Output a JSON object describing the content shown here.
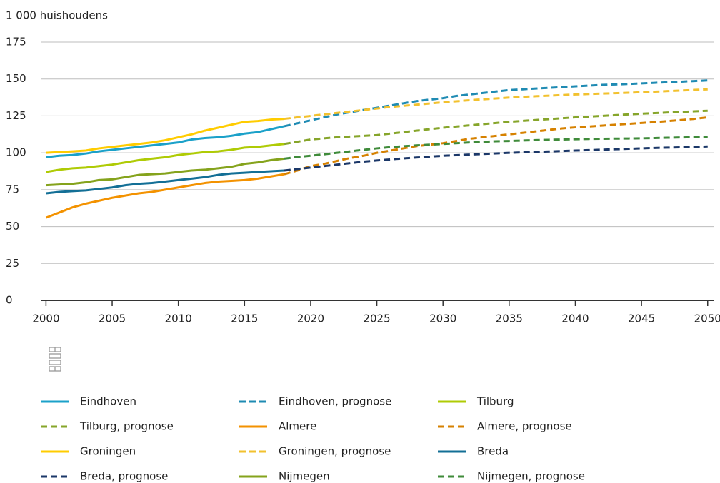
{
  "chart_data": {
    "type": "line",
    "y_label": "1 000 huishoudens",
    "x": [
      2000,
      2001,
      2002,
      2003,
      2004,
      2005,
      2006,
      2007,
      2008,
      2009,
      2010,
      2011,
      2012,
      2013,
      2014,
      2015,
      2016,
      2017,
      2018,
      2019,
      2020,
      2021,
      2022,
      2023,
      2024,
      2025,
      2026,
      2027,
      2028,
      2029,
      2030,
      2031,
      2032,
      2033,
      2034,
      2035,
      2036,
      2037,
      2038,
      2039,
      2040,
      2041,
      2042,
      2043,
      2044,
      2045,
      2046,
      2047,
      2048,
      2049,
      2050
    ],
    "xlim": [
      1999.6,
      2050.5
    ],
    "xticks": [
      2000,
      2005,
      2010,
      2015,
      2020,
      2025,
      2030,
      2035,
      2040,
      2045,
      2050
    ],
    "ylim": [
      0,
      175
    ],
    "yticks": [
      0,
      25,
      50,
      75,
      100,
      125,
      150,
      175
    ],
    "grid": true,
    "series": [
      {
        "name": "Eindhoven",
        "color": "#1ba1c9",
        "dashed": false,
        "values": [
          97,
          98,
          98.5,
          99.5,
          101,
          102,
          103,
          104,
          105,
          106,
          107,
          109,
          110,
          110.5,
          111.5,
          113,
          114,
          116,
          118,
          null,
          null,
          null,
          null,
          null,
          null,
          null,
          null,
          null,
          null,
          null,
          null,
          null,
          null,
          null,
          null,
          null,
          null,
          null,
          null,
          null,
          null,
          null,
          null,
          null,
          null,
          null,
          null,
          null,
          null,
          null,
          null
        ]
      },
      {
        "name": "Eindhoven, prognose",
        "color": "#1f8bb3",
        "dashed": true,
        "values": [
          null,
          null,
          null,
          null,
          null,
          null,
          null,
          null,
          null,
          null,
          null,
          null,
          null,
          null,
          null,
          null,
          null,
          null,
          118,
          120,
          122,
          124,
          126,
          127.5,
          129,
          130.5,
          132,
          133.5,
          135,
          136,
          137,
          138.5,
          139.5,
          140.5,
          141.5,
          142.5,
          143,
          143.5,
          144,
          144.5,
          145,
          145.5,
          146,
          146.3,
          146.6,
          147,
          147.4,
          147.8,
          148.2,
          148.6,
          149
        ]
      },
      {
        "name": "Tilburg",
        "color": "#afcb05",
        "dashed": false,
        "values": [
          87,
          88.5,
          89.5,
          90,
          91,
          92,
          93.5,
          95,
          96,
          97,
          98.5,
          99.5,
          100.5,
          101,
          102,
          103.5,
          104,
          105,
          106,
          null,
          null,
          null,
          null,
          null,
          null,
          null,
          null,
          null,
          null,
          null,
          null,
          null,
          null,
          null,
          null,
          null,
          null,
          null,
          null,
          null,
          null,
          null,
          null,
          null,
          null,
          null,
          null,
          null,
          null,
          null,
          null
        ]
      },
      {
        "name": "Tilburg, prognose",
        "color": "#86a52a",
        "dashed": true,
        "values": [
          null,
          null,
          null,
          null,
          null,
          null,
          null,
          null,
          null,
          null,
          null,
          null,
          null,
          null,
          null,
          null,
          null,
          null,
          106,
          107.5,
          109,
          109.8,
          110.5,
          111,
          111.5,
          112,
          113,
          114,
          115,
          116,
          117,
          117.8,
          118.6,
          119.4,
          120.2,
          121,
          121.6,
          122.2,
          122.8,
          123.4,
          124,
          124.5,
          125,
          125.5,
          126,
          126.5,
          126.9,
          127.3,
          127.7,
          128.1,
          128.5
        ]
      },
      {
        "name": "Almere",
        "color": "#f39200",
        "dashed": false,
        "values": [
          56,
          59.5,
          63,
          65.5,
          67.5,
          69.5,
          71,
          72.5,
          73.5,
          75,
          76.5,
          78,
          79.5,
          80.5,
          81,
          81.5,
          82.5,
          84,
          85.5,
          null,
          null,
          null,
          null,
          null,
          null,
          null,
          null,
          null,
          null,
          null,
          null,
          null,
          null,
          null,
          null,
          null,
          null,
          null,
          null,
          null,
          null,
          null,
          null,
          null,
          null,
          null,
          null,
          null,
          null,
          null,
          null
        ]
      },
      {
        "name": "Almere, prognose",
        "color": "#d68100",
        "dashed": true,
        "values": [
          null,
          null,
          null,
          null,
          null,
          null,
          null,
          null,
          null,
          null,
          null,
          null,
          null,
          null,
          null,
          null,
          null,
          null,
          85.5,
          88,
          91,
          92.5,
          94.5,
          96.5,
          98,
          100,
          101.5,
          103,
          104.5,
          105.5,
          106.5,
          108,
          109.5,
          110.5,
          111.5,
          112.5,
          113.5,
          114.5,
          115.5,
          116.5,
          117.2,
          117.8,
          118.4,
          119,
          119.6,
          120.2,
          120.8,
          121.5,
          122.2,
          123,
          124
        ]
      },
      {
        "name": "Groningen",
        "color": "#ffcc00",
        "dashed": false,
        "values": [
          100,
          100.5,
          101,
          101.5,
          103,
          104,
          105,
          106,
          107,
          108.5,
          110.5,
          112.5,
          115,
          117,
          119,
          121,
          121.5,
          122.5,
          123,
          null,
          null,
          null,
          null,
          null,
          null,
          null,
          null,
          null,
          null,
          null,
          null,
          null,
          null,
          null,
          null,
          null,
          null,
          null,
          null,
          null,
          null,
          null,
          null,
          null,
          null,
          null,
          null,
          null,
          null,
          null,
          null
        ]
      },
      {
        "name": "Groningen, prognose",
        "color": "#f2c12e",
        "dashed": true,
        "values": [
          null,
          null,
          null,
          null,
          null,
          null,
          null,
          null,
          null,
          null,
          null,
          null,
          null,
          null,
          null,
          null,
          null,
          null,
          123,
          124,
          125,
          126,
          127,
          128,
          129,
          130,
          131,
          131.8,
          132.6,
          133.4,
          134.2,
          134.9,
          135.6,
          136.2,
          136.8,
          137.4,
          137.9,
          138.3,
          138.7,
          139.1,
          139.5,
          139.8,
          140.1,
          140.4,
          140.7,
          141,
          141.4,
          141.8,
          142.2,
          142.6,
          143
        ]
      },
      {
        "name": "Breda",
        "color": "#136f96",
        "dashed": false,
        "values": [
          72.5,
          73.5,
          74,
          74.5,
          75.5,
          76.5,
          78,
          79,
          79.5,
          80.5,
          81.5,
          82.5,
          83.5,
          85,
          86,
          86.5,
          87,
          87.5,
          88,
          null,
          null,
          null,
          null,
          null,
          null,
          null,
          null,
          null,
          null,
          null,
          null,
          null,
          null,
          null,
          null,
          null,
          null,
          null,
          null,
          null,
          null,
          null,
          null,
          null,
          null,
          null,
          null,
          null,
          null,
          null,
          null
        ]
      },
      {
        "name": "Breda, prognose",
        "color": "#1b3768",
        "dashed": true,
        "values": [
          null,
          null,
          null,
          null,
          null,
          null,
          null,
          null,
          null,
          null,
          null,
          null,
          null,
          null,
          null,
          null,
          null,
          null,
          88,
          89,
          90,
          91,
          92,
          93,
          94,
          94.8,
          95.5,
          96.2,
          96.8,
          97.4,
          98,
          98.4,
          98.8,
          99.2,
          99.6,
          100,
          100.3,
          100.6,
          100.9,
          101.2,
          101.5,
          101.8,
          102.1,
          102.4,
          102.7,
          103,
          103.3,
          103.5,
          103.7,
          104,
          104.3
        ]
      },
      {
        "name": "Nijmegen",
        "color": "#85a31c",
        "dashed": false,
        "values": [
          78,
          78.5,
          79,
          80,
          81.5,
          82,
          83.5,
          85,
          85.5,
          86,
          87,
          88,
          88.5,
          89.5,
          90.5,
          92.5,
          93.5,
          95,
          96,
          null,
          null,
          null,
          null,
          null,
          null,
          null,
          null,
          null,
          null,
          null,
          null,
          null,
          null,
          null,
          null,
          null,
          null,
          null,
          null,
          null,
          null,
          null,
          null,
          null,
          null,
          null,
          null,
          null,
          null,
          null,
          null
        ]
      },
      {
        "name": "Nijmegen, prognose",
        "color": "#3f8b3a",
        "dashed": true,
        "values": [
          null,
          null,
          null,
          null,
          null,
          null,
          null,
          null,
          null,
          null,
          null,
          null,
          null,
          null,
          null,
          null,
          null,
          null,
          96,
          97.2,
          98,
          99,
          100,
          101,
          102,
          103,
          103.8,
          104.5,
          105,
          105.5,
          106,
          106.5,
          107,
          107.4,
          107.8,
          108,
          108.3,
          108.6,
          108.8,
          109,
          109.2,
          109.4,
          109.5,
          109.6,
          109.7,
          109.8,
          110,
          110.2,
          110.4,
          110.6,
          110.8
        ]
      }
    ]
  }
}
